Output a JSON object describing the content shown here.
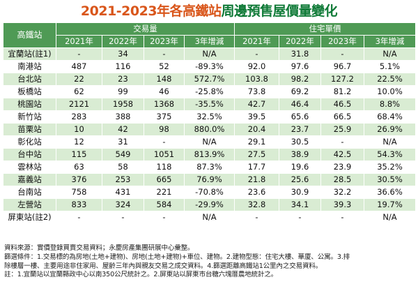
{
  "title": {
    "part1": "2021-2023年各高鐵站",
    "part2": "周邊預售屋價量變化"
  },
  "table": {
    "station_header": "高鐵站",
    "group_headers": [
      "交易量",
      "住宅單價"
    ],
    "sub_headers": [
      "2021年",
      "2022年",
      "2023年",
      "3年增減",
      "2021年",
      "2022年",
      "2023年",
      "3年增減"
    ],
    "rows": [
      {
        "station": "宜蘭站(註1)",
        "cells": [
          "-",
          "34",
          "-",
          "N/A",
          "-",
          "31.8",
          "-",
          "N/A"
        ]
      },
      {
        "station": "南港站",
        "cells": [
          "487",
          "116",
          "52",
          "-89.3%",
          "92.0",
          "97.6",
          "96.7",
          "5.1%"
        ]
      },
      {
        "station": "台北站",
        "cells": [
          "22",
          "23",
          "148",
          "572.7%",
          "103.8",
          "98.2",
          "127.2",
          "22.5%"
        ]
      },
      {
        "station": "板橋站",
        "cells": [
          "62",
          "99",
          "46",
          "-25.8%",
          "73.8",
          "69.2",
          "81.2",
          "10.0%"
        ]
      },
      {
        "station": "桃園站",
        "cells": [
          "2121",
          "1958",
          "1368",
          "-35.5%",
          "42.7",
          "46.4",
          "46.5",
          "8.8%"
        ]
      },
      {
        "station": "新竹站",
        "cells": [
          "283",
          "388",
          "375",
          "32.5%",
          "39.5",
          "65.6",
          "66.5",
          "68.4%"
        ]
      },
      {
        "station": "苗栗站",
        "cells": [
          "10",
          "42",
          "98",
          "880.0%",
          "20.4",
          "23.7",
          "25.9",
          "26.9%"
        ]
      },
      {
        "station": "彰化站",
        "cells": [
          "12",
          "31",
          "-",
          "N/A",
          "29.1",
          "30.5",
          "-",
          "N/A"
        ]
      },
      {
        "station": "台中站",
        "cells": [
          "115",
          "549",
          "1051",
          "813.9%",
          "27.5",
          "38.9",
          "42.5",
          "54.3%"
        ]
      },
      {
        "station": "雲林站",
        "cells": [
          "63",
          "58",
          "118",
          "87.3%",
          "17.7",
          "19.6",
          "23.9",
          "35.2%"
        ]
      },
      {
        "station": "嘉義站",
        "cells": [
          "376",
          "253",
          "665",
          "76.9%",
          "21.8",
          "25.6",
          "28.5",
          "30.5%"
        ]
      },
      {
        "station": "台南站",
        "cells": [
          "758",
          "431",
          "221",
          "-70.8%",
          "23.6",
          "30.9",
          "32.2",
          "36.6%"
        ]
      },
      {
        "station": "左營站",
        "cells": [
          "833",
          "324",
          "584",
          "-29.9%",
          "32.8",
          "34.1",
          "39.3",
          "19.7%"
        ]
      },
      {
        "station": "屏東站(註2)",
        "cells": [
          "-",
          "-",
          "-",
          "N/A",
          "-",
          "-",
          "-",
          "N/A"
        ]
      }
    ]
  },
  "notes": [
    "資料來源：實價登錄買賣交易資料；永慶房產集團研展中心彙整。",
    "篩選條件：1.交易標的為房地(土地+建物)、房地(土地+建物)+車位、建物。2.建物型態：住宅大樓、華廈、公寓。3.排",
    "除樓層一樓、主要用途非住家用、屋齡三年內與親友交易之成交資料。4.篩選距離高鐵站1公里內之交易資料。",
    "註：1.宜蘭站以宜蘭縣政中心以南350公尺統計之。2.屏東站以屏東市台糖六塊厝農地統計之。"
  ]
}
